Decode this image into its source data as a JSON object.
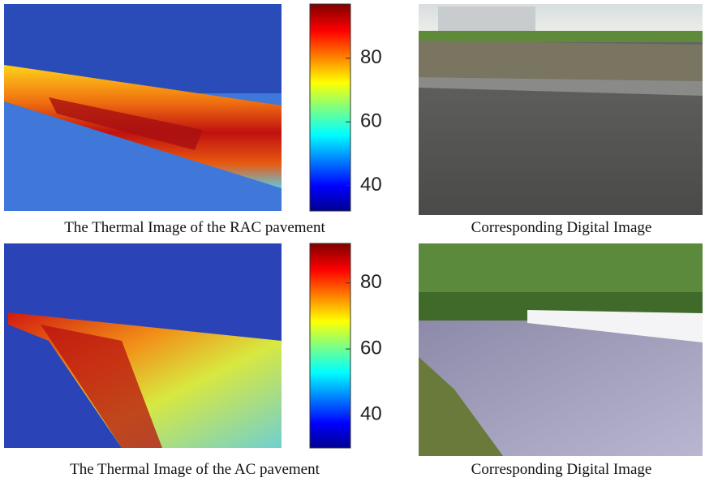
{
  "panels": [
    {
      "caption": "The Thermal Image of the RAC pavement",
      "photo_caption": "Corresponding Digital Image",
      "colorbar_lim": [
        32,
        97
      ],
      "colorbar_ticks": [
        40,
        60,
        80
      ]
    },
    {
      "caption": "The Thermal Image of the AC pavement",
      "photo_caption": "Corresponding Digital Image",
      "colorbar_lim": [
        30,
        92
      ],
      "colorbar_ticks": [
        40,
        60,
        80
      ]
    }
  ]
}
